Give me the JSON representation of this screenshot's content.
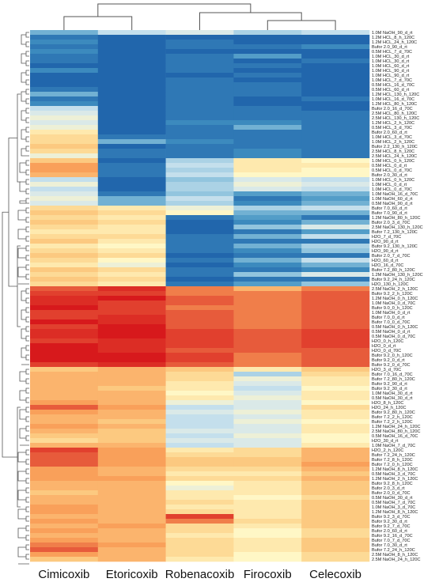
{
  "chart_data": {
    "type": "heatmap",
    "columns": [
      "Cimicoxib",
      "Etoricoxib",
      "Robenacoxib",
      "Firocoxib",
      "Celecoxib"
    ],
    "rows": [
      "1.0M NaOH_90_d_rt",
      "1.2M HCL_8_h_120C",
      "1.2M HCL_24_h_120C",
      "Bufor 2.0_90_d_rt",
      "0.5M HCL_7_d_70C",
      "1.0M HCL_30_d_rt",
      "1.0M HCL_30_d_rt",
      "1.0M HCL_60_d_rt",
      "1.0M HCL_90_d_rt",
      "1.0M HCL_90_d_rt",
      "1.0M HCL_7_d_70C",
      "0.5M HCL_16_d_70C",
      "0.5M HCL_60_d_rt",
      "1.2M HCL_130_h_120C",
      "1.0M HCL_16_d_70C",
      "1.2M HCL_80_h_120C",
      "Bufor 2.0_16_d_70C",
      "2.5M HCL_80_h_120C",
      "2.5M HCL_130_h_120C",
      "1.2M HCL_2_h_120C",
      "0.5M HCL_3_d_70C",
      "Bufor 2.0_60_d_rt",
      "1.0M HCL_3_d_70C",
      "1.0M HCL_2_h_120C",
      "Bufor 2.2_130_h_120C",
      "2.5M HCL_8_h_120C",
      "2.5M HCL_24_h_120C",
      "1.0M HCL_0_h_120C",
      "0.5M HCL_0_d_rt",
      "0.5M HCL_0_d_70C",
      "Bufor 2.0_30_d_rt",
      "1.0M HCL_0_h_120C",
      "1.0M HCL_0_d_rt",
      "1.0M HCL_0_d_70C",
      "1.0M NaOH_16_d_70C",
      "1.0M NaOH_60_d_rt",
      "0.5M NaOH_90_d_rt",
      "Bufor 7.0_60_d_rt",
      "Bufor 7.0_90_d_rt",
      "1.2M NaOH_80_h_120C",
      "Bufor 2.0_3_d_70C",
      "2.5M NaOH_130_h_120C",
      "Bufor 7.2_130_h_120C",
      "H2O_7_d_70C",
      "H2O_90_d_rt",
      "Bufor 9.2_130_h_120C",
      "H2O_90_d_rt",
      "Bufor 2.0_7_d_70C",
      "H2O_60_d_rt",
      "H2O_16_d_70C",
      "Bufor 7.2_80_h_120C",
      "1.2M NaOH_130_h_120C",
      "Bufor 9.2_24_h_120C",
      "H2O_130_h_120C",
      "2.5M NaOH_2_h_120C",
      "Bufor 9.2_2_h_120C",
      "1.2M NaOH_0_h_120C",
      "1.0M NaOH_0_d_70C",
      "Bufor 9.0_0_h_120C",
      "1.0M NaOH_0_d_rt",
      "Bufor 7.0_0_d_rt",
      "Bufor 7.0_0_d_70C",
      "0.5M NaOH_0_h_120C",
      "0.5M NaOH_0_d_rt",
      "0.5M NaOH_0_d_70C",
      "H2O_0_h_120C",
      "H2O_0_d_rt",
      "H2O_0_d_70C",
      "Bufor 9.2_0_h_120C",
      "Bufor 9.2_0_d_rt",
      "Bufor 9.2_0_d_70C",
      "H2O_3_d_70C",
      "Bufor 7.0_16_d_70C",
      "Bufor 7.2_80_h_120C",
      "Bufor 9.2_90_d_rt",
      "Bufor 9.2_30_d_rt",
      "1.0M NaOH_30_d_rt",
      "0.5M NaOH_30_d_rt",
      "H2O_8_h_120C",
      "H2O_24_h_120C",
      "Bufor 9.2_80_h_120C",
      "Bufor 7.2_2_h_120C",
      "Bufor 7.2_2_h_120C",
      "1.2M NaOH_24_h_120C",
      "2.5M NaOH_80_h_120C",
      "0.5M NaOH_16_d_70C",
      "H2O_30_d_rt",
      "1.0M NaOH_7_d_70C",
      "H2O_2_h_120C",
      "Bufor 7.2_24_h_120C",
      "Bufor 7.2_8_h_120C",
      "Bufor 7.2_0_h_120C",
      "1.2M NaOH_8_h_120C",
      "0.5M NaOH_3_d_70C",
      "1.2M NaOH_2_h_120C",
      "Bufor 9.2_8_h_120C",
      "Bufor 2.0_3_d_rt",
      "Bufor 2.0_0_d_70C",
      "0.5M NaOH_30_d_rt",
      "0.5M NaOH_7_d_70C",
      "1.0M NaOH_3_d_70C",
      "1.2M NaOH_8_h_120C",
      "Bufor 9.2_3_d_70C",
      "Bufor 9.2_30_d_rt",
      "Bufor 9.2_7_d_70C",
      "Bufor 2.0_60_d_rt",
      "Bufor 9.2_16_d_70C",
      "Bufor 7.0_7_d_70C",
      "Bufor 7.0_30_d_rt",
      "Bufor 7.2_24_h_120C",
      "2.5M NaOH_8_h_120C",
      "2.5M NaOH_24_h_120C"
    ],
    "values": [
      [
        -0.6,
        -0.3,
        -0.2,
        -0.4,
        -0.3
      ],
      [
        -0.9,
        -1.0,
        -1.0,
        -1.0,
        -1.0
      ],
      [
        -0.8,
        -1.0,
        -0.9,
        -1.0,
        -1.0
      ],
      [
        -0.9,
        -1.0,
        -0.9,
        -0.9,
        -0.8
      ],
      [
        -0.8,
        -1.0,
        -1.0,
        -1.0,
        -1.0
      ],
      [
        -0.9,
        -1.0,
        -0.9,
        -0.7,
        -1.0
      ],
      [
        -0.9,
        -1.0,
        -0.9,
        -1.0,
        -0.9
      ],
      [
        -1.0,
        -1.0,
        -0.9,
        -0.9,
        -1.0
      ],
      [
        -0.8,
        -1.0,
        -0.9,
        -1.0,
        -1.0
      ],
      [
        -1.0,
        -1.0,
        -1.0,
        -0.9,
        -1.0
      ],
      [
        -1.0,
        -1.0,
        -0.9,
        -1.0,
        -1.0
      ],
      [
        -1.0,
        -1.0,
        -0.9,
        -0.9,
        -1.0
      ],
      [
        -0.9,
        -1.0,
        -0.9,
        -0.9,
        -1.0
      ],
      [
        -0.6,
        -1.0,
        -0.9,
        -0.9,
        -1.0
      ],
      [
        -0.9,
        -1.0,
        -0.9,
        -1.0,
        -0.9
      ],
      [
        -0.8,
        -1.0,
        -0.9,
        -1.0,
        -1.0
      ],
      [
        -0.3,
        -1.0,
        -0.9,
        -0.9,
        -1.0
      ],
      [
        -0.2,
        -1.0,
        -0.9,
        -0.9,
        -0.9
      ],
      [
        -0.1,
        -1.0,
        -0.9,
        -0.9,
        -0.9
      ],
      [
        -0.2,
        -1.0,
        -0.8,
        -0.8,
        -0.9
      ],
      [
        -0.1,
        -1.0,
        -0.9,
        -0.6,
        -0.9
      ],
      [
        0.1,
        -1.0,
        -0.9,
        -0.9,
        -0.9
      ],
      [
        0.2,
        -0.9,
        -0.9,
        -0.9,
        -0.9
      ],
      [
        0.2,
        -0.6,
        -0.8,
        -0.9,
        -0.9
      ],
      [
        0.3,
        -1.0,
        -0.9,
        -0.9,
        -0.9
      ],
      [
        0.2,
        -0.9,
        -0.9,
        -0.8,
        -0.9
      ],
      [
        -0.1,
        -0.9,
        -0.9,
        -0.8,
        -0.9
      ],
      [
        0.3,
        -1.0,
        -0.4,
        0.1,
        0.0
      ],
      [
        0.5,
        -0.9,
        -0.3,
        0.1,
        0.1
      ],
      [
        0.5,
        -0.9,
        -0.4,
        0.1,
        0.0
      ],
      [
        0.4,
        -0.9,
        -0.3,
        0.0,
        0.0
      ],
      [
        -0.3,
        -1.0,
        -0.5,
        -0.2,
        -0.3
      ],
      [
        -0.1,
        -1.0,
        -0.4,
        -0.1,
        -0.2
      ],
      [
        -0.3,
        -1.0,
        -0.4,
        -0.2,
        -0.3
      ],
      [
        -0.2,
        -0.9,
        -0.5,
        -0.7,
        -0.6
      ],
      [
        -0.1,
        -0.6,
        -0.3,
        -0.9,
        -0.7
      ],
      [
        -0.2,
        -0.6,
        -0.4,
        -0.8,
        -0.6
      ],
      [
        0.2,
        0.1,
        -0.1,
        -0.4,
        -0.3
      ],
      [
        0.3,
        0.2,
        0.0,
        -0.6,
        -0.6
      ],
      [
        0.2,
        0.1,
        -0.9,
        -0.7,
        -0.9
      ],
      [
        0.3,
        0.2,
        -1.0,
        -0.8,
        -0.6
      ],
      [
        0.2,
        0.1,
        -1.0,
        -0.5,
        -0.2
      ],
      [
        0.1,
        0.1,
        -1.0,
        -0.9,
        -0.7
      ],
      [
        0.2,
        0.2,
        -0.9,
        -0.6,
        -0.3
      ],
      [
        0.3,
        0.1,
        -0.9,
        -0.9,
        -0.9
      ],
      [
        0.1,
        0.0,
        -0.9,
        -0.6,
        -0.4
      ],
      [
        0.2,
        0.1,
        -0.9,
        -0.8,
        -0.5
      ],
      [
        0.3,
        0.2,
        -1.0,
        -0.9,
        -0.9
      ],
      [
        0.2,
        0.0,
        -0.9,
        -0.6,
        -0.3
      ],
      [
        0.1,
        -0.1,
        -1.0,
        -0.8,
        -0.6
      ],
      [
        0.3,
        0.2,
        -0.9,
        -0.9,
        -0.8
      ],
      [
        0.2,
        0.1,
        -0.9,
        -0.5,
        -0.2
      ],
      [
        0.3,
        0.2,
        -1.0,
        -0.9,
        -0.9
      ],
      [
        0.2,
        0.1,
        -0.9,
        -0.7,
        -0.5
      ],
      [
        0.7,
        0.9,
        0.6,
        0.4,
        0.6
      ],
      [
        0.8,
        0.8,
        0.6,
        0.6,
        0.7
      ],
      [
        0.9,
        1.0,
        0.7,
        0.6,
        0.7
      ],
      [
        0.9,
        0.8,
        0.7,
        0.6,
        0.7
      ],
      [
        1.0,
        0.8,
        0.6,
        0.6,
        0.7
      ],
      [
        0.8,
        0.8,
        0.7,
        0.6,
        0.7
      ],
      [
        0.8,
        0.9,
        0.7,
        0.6,
        0.7
      ],
      [
        1.0,
        0.9,
        0.7,
        0.6,
        0.7
      ],
      [
        0.8,
        1.0,
        0.7,
        0.6,
        0.7
      ],
      [
        0.9,
        1.0,
        0.8,
        0.7,
        0.8
      ],
      [
        0.9,
        1.0,
        0.8,
        0.7,
        0.8
      ],
      [
        0.8,
        0.9,
        0.8,
        0.7,
        0.8
      ],
      [
        1.0,
        0.9,
        0.8,
        0.7,
        0.8
      ],
      [
        1.0,
        0.9,
        0.7,
        0.7,
        0.7
      ],
      [
        1.0,
        1.0,
        0.8,
        0.6,
        0.7
      ],
      [
        1.0,
        1.0,
        0.8,
        0.6,
        0.7
      ],
      [
        0.8,
        0.9,
        0.7,
        0.6,
        0.7
      ],
      [
        0.3,
        0.4,
        0.3,
        0.1,
        0.3
      ],
      [
        0.4,
        0.4,
        0.2,
        -0.4,
        0.2
      ],
      [
        0.4,
        0.4,
        0.2,
        -0.1,
        0.1
      ],
      [
        0.4,
        0.4,
        0.1,
        -0.2,
        0.1
      ],
      [
        0.4,
        0.3,
        0.1,
        -0.3,
        0.0
      ],
      [
        0.4,
        0.4,
        0.0,
        -0.2,
        0.1
      ],
      [
        0.4,
        0.4,
        0.1,
        -0.1,
        0.1
      ],
      [
        0.5,
        0.4,
        -0.1,
        -0.2,
        0.0
      ],
      [
        0.7,
        0.5,
        -0.3,
        -0.2,
        0.2
      ],
      [
        0.5,
        0.4,
        -0.2,
        -0.1,
        0.1
      ],
      [
        0.4,
        0.4,
        -0.3,
        -0.2,
        0.1
      ],
      [
        0.4,
        0.3,
        -0.3,
        -0.1,
        0.0
      ],
      [
        0.5,
        0.4,
        -0.3,
        -0.2,
        0.1
      ],
      [
        0.4,
        0.3,
        -0.2,
        -0.2,
        0.1
      ],
      [
        0.3,
        0.3,
        -0.3,
        -0.1,
        0.0
      ],
      [
        0.2,
        0.3,
        -0.2,
        -0.2,
        0.0
      ],
      [
        0.4,
        0.4,
        -0.3,
        -0.2,
        0.1
      ],
      [
        0.8,
        0.5,
        0.1,
        0.2,
        0.4
      ],
      [
        0.7,
        0.5,
        0.2,
        0.2,
        0.4
      ],
      [
        0.7,
        0.5,
        0.3,
        0.3,
        0.4
      ],
      [
        0.7,
        0.5,
        0.3,
        0.3,
        0.5
      ],
      [
        0.5,
        0.4,
        0.2,
        0.2,
        0.4
      ],
      [
        0.5,
        0.4,
        0.1,
        0.1,
        0.3
      ],
      [
        0.5,
        0.5,
        0.2,
        0.2,
        0.4
      ],
      [
        0.4,
        0.4,
        0.0,
        0.1,
        0.3
      ],
      [
        0.4,
        0.4,
        -0.1,
        0.1,
        0.3
      ],
      [
        0.3,
        0.4,
        0.1,
        0.1,
        0.3
      ],
      [
        0.4,
        0.4,
        0.1,
        0.0,
        0.2
      ],
      [
        0.4,
        0.4,
        0.2,
        0.1,
        0.3
      ],
      [
        0.5,
        0.4,
        0.1,
        0.1,
        0.3
      ],
      [
        0.5,
        0.4,
        0.2,
        0.1,
        0.3
      ],
      [
        0.4,
        0.4,
        0.8,
        0.1,
        0.3
      ],
      [
        0.5,
        0.4,
        0.6,
        0.2,
        0.3
      ],
      [
        0.4,
        0.5,
        0.2,
        0.1,
        0.3
      ],
      [
        0.5,
        0.4,
        0.2,
        0.0,
        0.2
      ],
      [
        0.4,
        0.4,
        0.1,
        0.0,
        0.2
      ],
      [
        0.5,
        0.4,
        0.2,
        0.1,
        0.3
      ],
      [
        0.6,
        0.5,
        0.2,
        0.1,
        0.3
      ],
      [
        0.7,
        0.4,
        0.2,
        0.1,
        0.3
      ],
      [
        0.5,
        0.4,
        0.2,
        0.0,
        0.2
      ],
      [
        0.3,
        0.4,
        0.1,
        0.0,
        0.2
      ]
    ],
    "colormap": [
      "#2166ac",
      "#4393c3",
      "#92c5de",
      "#d1e5f0",
      "#fff7c6",
      "#fdd38a",
      "#f9a05a",
      "#e34a33",
      "#d7191c"
    ],
    "value_range": [
      -1,
      1
    ],
    "row_dendrogram": "left",
    "column_dendrogram": "top"
  }
}
